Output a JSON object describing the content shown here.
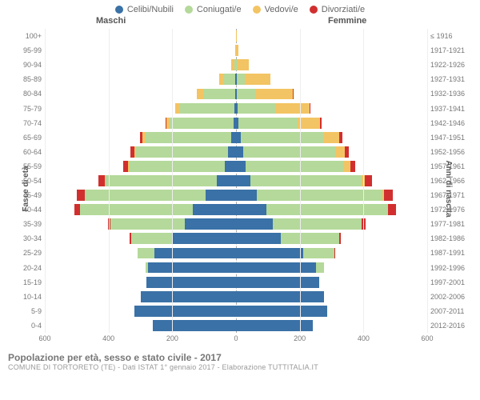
{
  "legend": [
    {
      "label": "Celibi/Nubili",
      "color": "#3a71a6"
    },
    {
      "label": "Coniugati/e",
      "color": "#b4d99a"
    },
    {
      "label": "Vedovi/e",
      "color": "#f3c463"
    },
    {
      "label": "Divorziati/e",
      "color": "#d12f2f"
    }
  ],
  "headers": {
    "male": "Maschi",
    "female": "Femmine"
  },
  "y_left_title": "Fasce di età",
  "y_right_title": "Anni di nascita",
  "x_ticks": [
    600,
    400,
    200,
    0,
    200,
    400,
    600
  ],
  "x_max": 600,
  "footer": {
    "title": "Popolazione per età, sesso e stato civile - 2017",
    "subtitle": "COMUNE DI TORTORETO (TE) - Dati ISTAT 1° gennaio 2017 - Elaborazione TUTTITALIA.IT"
  },
  "rows": [
    {
      "age": "100+",
      "birth": "≤ 1916",
      "m": [
        0,
        0,
        0,
        0
      ],
      "f": [
        0,
        0,
        1,
        0
      ]
    },
    {
      "age": "95-99",
      "birth": "1917-1921",
      "m": [
        0,
        0,
        2,
        0
      ],
      "f": [
        0,
        0,
        8,
        0
      ]
    },
    {
      "age": "90-94",
      "birth": "1922-1926",
      "m": [
        0,
        5,
        10,
        0
      ],
      "f": [
        0,
        5,
        35,
        0
      ]
    },
    {
      "age": "85-89",
      "birth": "1927-1931",
      "m": [
        2,
        35,
        15,
        0
      ],
      "f": [
        3,
        25,
        80,
        0
      ]
    },
    {
      "age": "80-84",
      "birth": "1932-1936",
      "m": [
        3,
        100,
        20,
        0
      ],
      "f": [
        3,
        60,
        115,
        2
      ]
    },
    {
      "age": "75-79",
      "birth": "1937-1941",
      "m": [
        5,
        170,
        15,
        2
      ],
      "f": [
        5,
        120,
        105,
        3
      ]
    },
    {
      "age": "70-74",
      "birth": "1942-1946",
      "m": [
        8,
        200,
        10,
        3
      ],
      "f": [
        8,
        185,
        70,
        5
      ]
    },
    {
      "age": "65-69",
      "birth": "1947-1951",
      "m": [
        15,
        270,
        8,
        8
      ],
      "f": [
        15,
        260,
        50,
        10
      ]
    },
    {
      "age": "60-64",
      "birth": "1952-1956",
      "m": [
        25,
        290,
        5,
        12
      ],
      "f": [
        22,
        290,
        30,
        12
      ]
    },
    {
      "age": "55-59",
      "birth": "1957-1961",
      "m": [
        35,
        300,
        3,
        15
      ],
      "f": [
        30,
        310,
        18,
        15
      ]
    },
    {
      "age": "50-54",
      "birth": "1962-1966",
      "m": [
        60,
        350,
        2,
        20
      ],
      "f": [
        45,
        350,
        10,
        22
      ]
    },
    {
      "age": "45-49",
      "birth": "1967-1971",
      "m": [
        95,
        380,
        0,
        25
      ],
      "f": [
        65,
        395,
        5,
        28
      ]
    },
    {
      "age": "40-44",
      "birth": "1972-1976",
      "m": [
        135,
        355,
        0,
        18
      ],
      "f": [
        95,
        380,
        2,
        25
      ]
    },
    {
      "age": "35-39",
      "birth": "1977-1981",
      "m": [
        160,
        235,
        0,
        8
      ],
      "f": [
        115,
        280,
        0,
        12
      ]
    },
    {
      "age": "30-34",
      "birth": "1982-1986",
      "m": [
        200,
        130,
        0,
        3
      ],
      "f": [
        140,
        185,
        0,
        5
      ]
    },
    {
      "age": "25-29",
      "birth": "1987-1991",
      "m": [
        255,
        55,
        0,
        0
      ],
      "f": [
        210,
        100,
        0,
        2
      ]
    },
    {
      "age": "20-24",
      "birth": "1992-1996",
      "m": [
        275,
        10,
        0,
        0
      ],
      "f": [
        250,
        25,
        0,
        0
      ]
    },
    {
      "age": "15-19",
      "birth": "1997-2001",
      "m": [
        280,
        0,
        0,
        0
      ],
      "f": [
        260,
        0,
        0,
        0
      ]
    },
    {
      "age": "10-14",
      "birth": "2002-2006",
      "m": [
        300,
        0,
        0,
        0
      ],
      "f": [
        275,
        0,
        0,
        0
      ]
    },
    {
      "age": "5-9",
      "birth": "2007-2011",
      "m": [
        320,
        0,
        0,
        0
      ],
      "f": [
        285,
        0,
        0,
        0
      ]
    },
    {
      "age": "0-4",
      "birth": "2012-2016",
      "m": [
        260,
        0,
        0,
        0
      ],
      "f": [
        240,
        0,
        0,
        0
      ]
    }
  ]
}
